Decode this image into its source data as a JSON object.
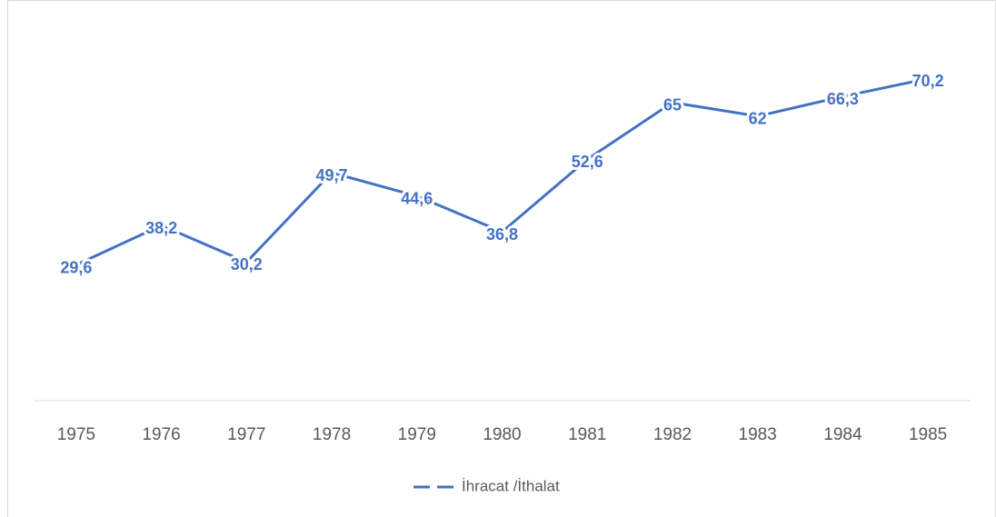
{
  "chart_data": {
    "type": "line",
    "categories": [
      "1975",
      "1976",
      "1977",
      "1978",
      "1979",
      "1980",
      "1981",
      "1982",
      "1983",
      "1984",
      "1985"
    ],
    "series": [
      {
        "name": "İhracat /İthalat",
        "color": "#4472c4",
        "values": [
          29.6,
          38.2,
          30.2,
          49.7,
          44.6,
          36.8,
          52.6,
          65,
          62,
          66.3,
          70.2
        ],
        "value_labels": [
          "29,6",
          "38,2",
          "30,2",
          "49,7",
          "44,6",
          "36,8",
          "52,6",
          "65",
          "62",
          "66,3",
          "70,2"
        ]
      }
    ],
    "ylim": [
      0,
      80
    ],
    "grid": false,
    "legend": "bottom"
  }
}
